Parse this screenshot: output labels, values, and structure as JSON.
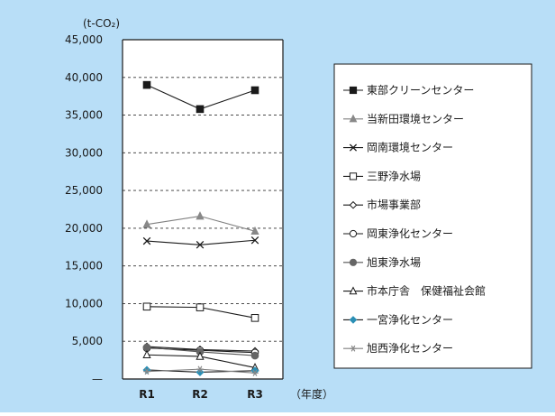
{
  "colors": {
    "background": "#b8def7",
    "plot_bg": "#ffffff",
    "axis": "#1a1a1a",
    "grid": "#333333"
  },
  "chart_data": {
    "type": "line",
    "y_unit_label": "(t-CO₂)",
    "x_unit_label": "（年度）",
    "x": [
      "R1",
      "R2",
      "R3"
    ],
    "ylim": [
      0,
      45000
    ],
    "yticks": [
      0,
      5000,
      10000,
      15000,
      20000,
      25000,
      30000,
      35000,
      40000,
      45000
    ],
    "ytick_labels": [
      "—",
      "5,000",
      "10,000",
      "15,000",
      "20,000",
      "25,000",
      "30,000",
      "35,000",
      "40,000",
      "45,000"
    ],
    "grid": "horizontal dashed",
    "legend_position": "right",
    "series": [
      {
        "name": "東部クリーンセンター",
        "values": [
          39000,
          35800,
          38300
        ],
        "color": "#1a1a1a",
        "marker": "square-filled",
        "marker_color": "#1a1a1a"
      },
      {
        "name": "当新田環境センター",
        "values": [
          20500,
          21600,
          19600
        ],
        "color": "#808080",
        "marker": "triangle-filled",
        "marker_color": "#888888"
      },
      {
        "name": "岡南環境センター",
        "values": [
          18300,
          17800,
          18400
        ],
        "color": "#1a1a1a",
        "marker": "x",
        "marker_color": "#1a1a1a"
      },
      {
        "name": "三野浄水場",
        "values": [
          9600,
          9500,
          8100
        ],
        "color": "#1a1a1a",
        "marker": "square-open",
        "marker_color": "#1a1a1a"
      },
      {
        "name": "市場事業部",
        "values": [
          4300,
          3900,
          3700
        ],
        "color": "#1a1a1a",
        "marker": "diamond-open",
        "marker_color": "#1a1a1a"
      },
      {
        "name": "岡東浄化センター",
        "values": [
          4100,
          3800,
          3500
        ],
        "color": "#1a1a1a",
        "marker": "circle-open",
        "marker_color": "#1a1a1a"
      },
      {
        "name": "旭東浄水場",
        "values": [
          4200,
          3600,
          3100
        ],
        "color": "#555555",
        "marker": "circle-filled",
        "marker_color": "#666666"
      },
      {
        "name": "市本庁舎　保健福祉会館",
        "values": [
          3200,
          3000,
          1500
        ],
        "color": "#1a1a1a",
        "marker": "triangle-open",
        "marker_color": "#1a1a1a"
      },
      {
        "name": "一宮浄化センター",
        "values": [
          1200,
          900,
          1100
        ],
        "color": "#1a1a1a",
        "marker": "diamond-filled",
        "marker_color": "#2b8fb5"
      },
      {
        "name": "旭西浄化センター",
        "values": [
          1000,
          1300,
          800
        ],
        "color": "#808080",
        "marker": "star",
        "marker_color": "#888888"
      }
    ]
  }
}
